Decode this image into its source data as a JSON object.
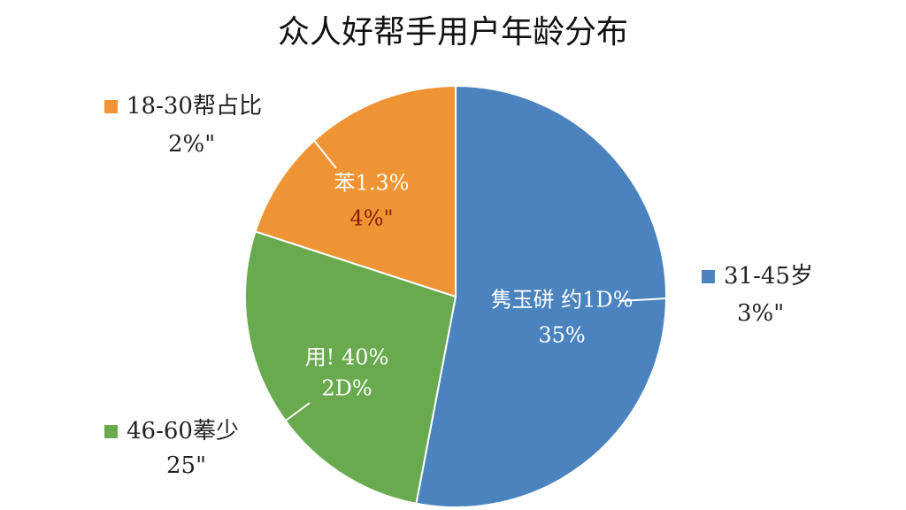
{
  "chart_data": {
    "type": "pie",
    "title": "众人好帮手用户年龄分布",
    "categories": [
      "31-45岁",
      "46-60菶少",
      "18-30帮占比"
    ],
    "values": [
      53,
      27,
      20
    ],
    "colors": [
      "#4a83bd",
      "#6aaa4f",
      "#ef9434"
    ],
    "legend_sublabels": [
      "3%\"",
      "25\"",
      "2%\""
    ],
    "slice_labels": [
      [
        "隽玉硑 约1D%",
        "35%"
      ],
      [
        "用! 40%",
        "2D%"
      ],
      [
        "苯1.3%",
        "4%\""
      ]
    ]
  }
}
